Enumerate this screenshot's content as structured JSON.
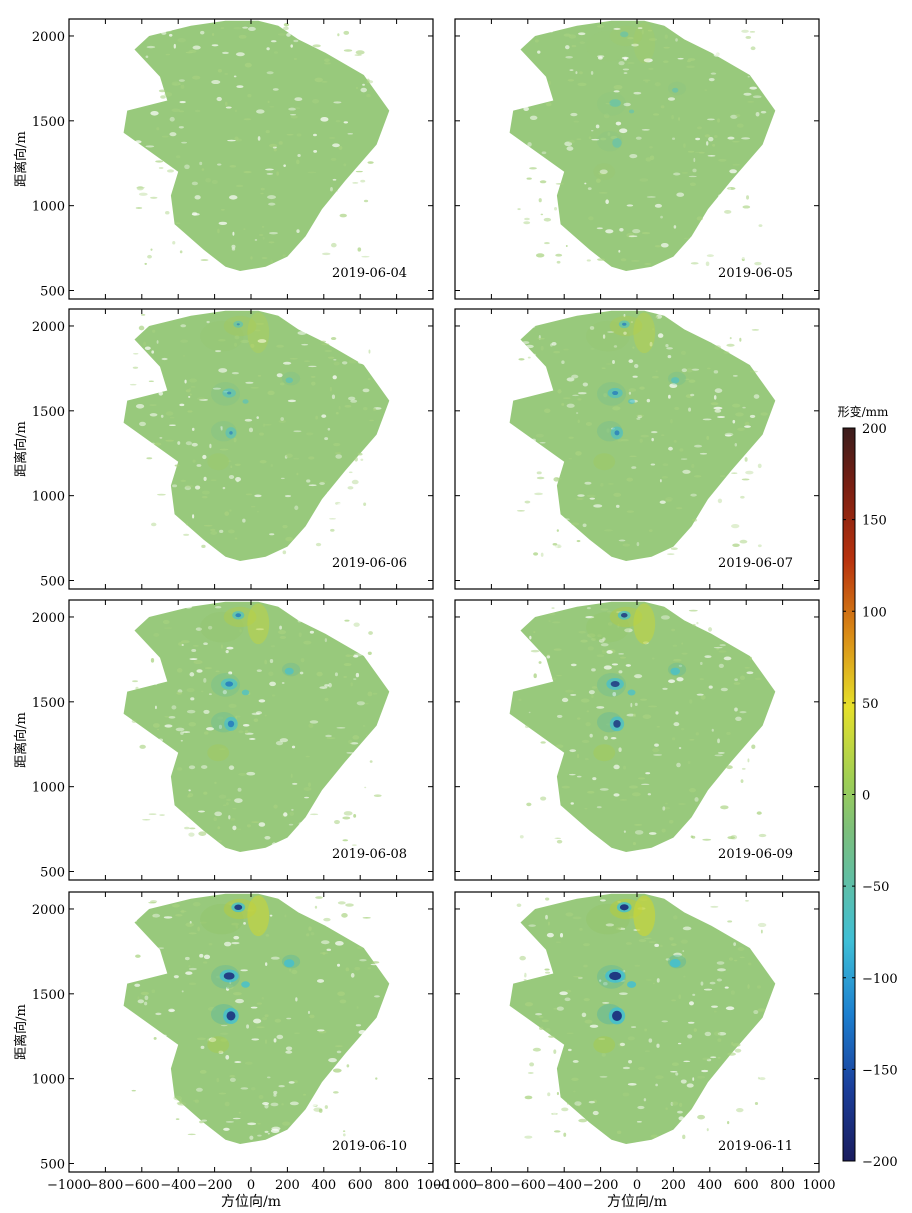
{
  "chart_data": {
    "type": "heatmap",
    "layout": "4x2 grid of map panels sharing axes",
    "xlabel": "方位向/m",
    "ylabel": "距离向/m",
    "xlim": [
      -1000,
      1000
    ],
    "ylim": [
      450,
      2100
    ],
    "x_ticks": [
      -1000,
      -800,
      -600,
      -400,
      -200,
      0,
      200,
      400,
      600,
      800,
      1000
    ],
    "y_ticks": [
      500,
      1000,
      1500,
      2000
    ],
    "colorbar": {
      "label": "形变/mm",
      "range": [
        -200,
        200
      ],
      "ticks": [
        -200,
        -150,
        -100,
        -50,
        0,
        50,
        100,
        150,
        200
      ],
      "colormap": [
        "#1a1c5e",
        "#1b3f9b",
        "#1c7fcf",
        "#3fbfd6",
        "#7cbf7c",
        "#9fcf55",
        "#e6e02a",
        "#d98a16",
        "#b8320e",
        "#7a1f12",
        "#3b1d1d"
      ]
    },
    "panels": [
      {
        "date": "2019-06-04",
        "intensity": 0.0
      },
      {
        "date": "2019-06-05",
        "intensity": 0.15
      },
      {
        "date": "2019-06-06",
        "intensity": 0.35
      },
      {
        "date": "2019-06-07",
        "intensity": 0.5
      },
      {
        "date": "2019-06-08",
        "intensity": 0.65
      },
      {
        "date": "2019-06-09",
        "intensity": 0.75
      },
      {
        "date": "2019-06-10",
        "intensity": 0.9
      },
      {
        "date": "2019-06-11",
        "intensity": 1.0
      }
    ]
  }
}
